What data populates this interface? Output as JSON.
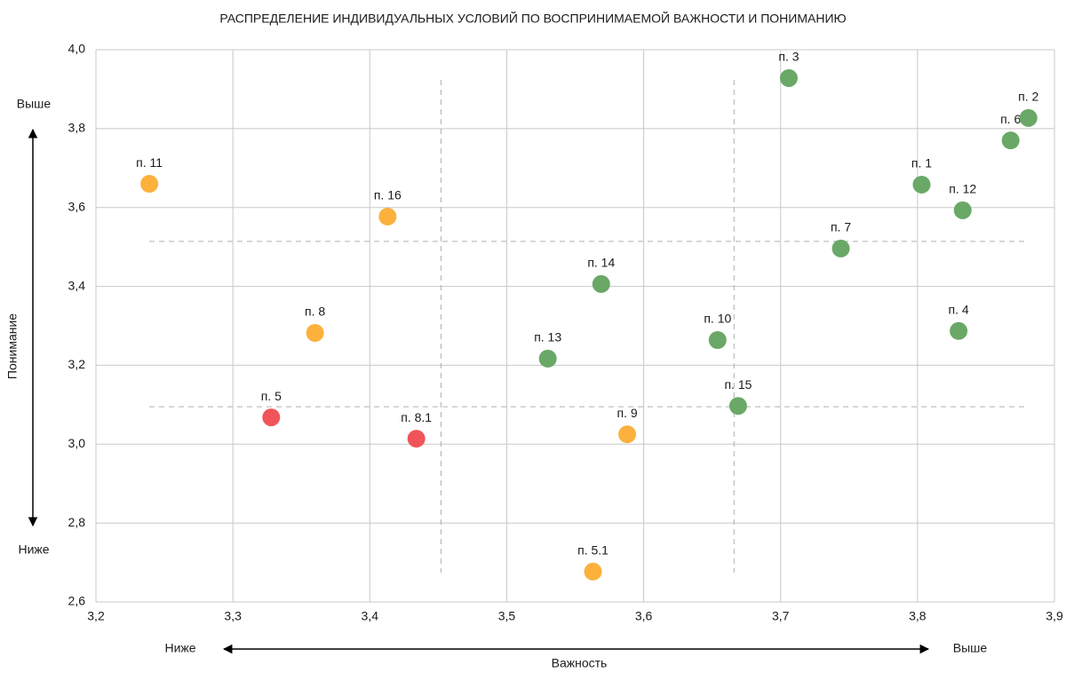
{
  "chart_data": {
    "type": "scatter",
    "title": "РАСПРЕДЕЛЕНИЕ ИНДИВИДУАЛЬНЫХ УСЛОВИЙ ПО ВОСПРИНИМАЕМОЙ ВАЖНОСТИ И ПОНИМАНИЮ",
    "x_label": "Важность",
    "y_label": "Понимание",
    "x_low": "Ниже",
    "x_high": "Выше",
    "y_low": "Ниже",
    "y_high": "Выше",
    "xlim": [
      3.2,
      3.9
    ],
    "xticks": [
      {
        "value": 3.2,
        "label": "3,2"
      },
      {
        "value": 3.3,
        "label": "3,3"
      },
      {
        "value": 3.4,
        "label": "3,4"
      },
      {
        "value": 3.5,
        "label": "3,5"
      },
      {
        "value": 3.6,
        "label": "3,6"
      },
      {
        "value": 3.7,
        "label": "3,7"
      },
      {
        "value": 3.8,
        "label": "3,8"
      },
      {
        "value": 3.9,
        "label": "3,9"
      }
    ],
    "ylim": [
      2.6,
      4.0
    ],
    "yticks": [
      {
        "value": 2.6,
        "label": "2,6"
      },
      {
        "value": 2.8,
        "label": "2,8"
      },
      {
        "value": 3.0,
        "label": "3,0"
      },
      {
        "value": 3.2,
        "label": "3,2"
      },
      {
        "value": 3.4,
        "label": "3,4"
      },
      {
        "value": 3.6,
        "label": "3,6"
      },
      {
        "value": 3.8,
        "label": "3,8"
      },
      {
        "value": 4.0,
        "label": "4,0"
      }
    ],
    "grid": true,
    "vlines": [
      3.452,
      3.666
    ],
    "hlines": [
      3.514,
      3.095
    ],
    "point_labels": [
      "п. 11",
      "п. 16",
      "п. 8",
      "п. 5",
      "п. 8.1",
      "п. 5.1",
      "п. 9",
      "п. 13",
      "п. 14",
      "п. 10",
      "п. 15",
      "п. 3",
      "п. 7",
      "п. 1",
      "п. 12",
      "п. 4",
      "п. 6",
      "п. 2"
    ],
    "x": [
      3.239,
      3.413,
      3.36,
      3.328,
      3.434,
      3.563,
      3.588,
      3.53,
      3.569,
      3.654,
      3.669,
      3.706,
      3.744,
      3.803,
      3.833,
      3.83,
      3.868,
      3.881
    ],
    "values": [
      3.66,
      3.577,
      3.282,
      3.068,
      3.014,
      2.677,
      3.025,
      3.217,
      3.406,
      3.264,
      3.097,
      3.928,
      3.496,
      3.658,
      3.593,
      3.287,
      3.77,
      3.827
    ],
    "colors": [
      "#fbb13c",
      "#fbb13c",
      "#fbb13c",
      "#f0545a",
      "#f0545a",
      "#fbb13c",
      "#fbb13c",
      "#6aa867",
      "#6aa867",
      "#6aa867",
      "#6aa867",
      "#6aa867",
      "#6aa867",
      "#6aa867",
      "#6aa867",
      "#6aa867",
      "#6aa867",
      "#6aa867"
    ]
  }
}
